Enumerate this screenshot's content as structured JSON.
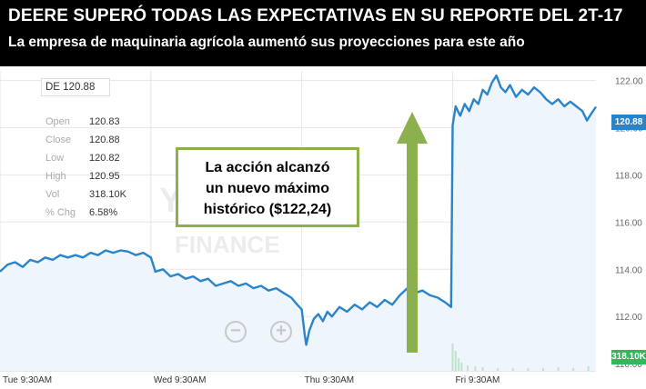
{
  "header": {
    "title": "DEERE SUPERÓ TODAS LAS EXPECTATIVAS EN SU REPORTE DEL 2T-17",
    "subtitle": "La empresa de maquinaria  agrícola aumentó sus proyecciones para  este año"
  },
  "quote": {
    "ticker": "DE 120.88",
    "rows": [
      {
        "label": "Open",
        "value": "120.83"
      },
      {
        "label": "Close",
        "value": "120.88"
      },
      {
        "label": "Low",
        "value": "120.82"
      },
      {
        "label": "High",
        "value": "120.95"
      },
      {
        "label": "Vol",
        "value": "318.10K"
      },
      {
        "label": "% Chg",
        "value": "6.58%"
      }
    ]
  },
  "annotation": {
    "lines": [
      "La acción alcanzó",
      "un nuevo máximo",
      "histórico  ($122,24)"
    ]
  },
  "watermark": {
    "line1": "Y!",
    "line2": "FINANCE"
  },
  "badges": {
    "price": "120.88",
    "volume": "318.10K"
  },
  "zoom": {
    "out": "−",
    "in": "+"
  },
  "colors": {
    "line": "#2a84c9",
    "fill": "#eef5fc",
    "arrow": "#8cb04e",
    "volume": "#bfe3c8"
  },
  "chart_data": {
    "type": "line",
    "title": "",
    "xlabel": "",
    "ylabel": "",
    "x_ticks": [
      {
        "label": "Tue 9:30AM",
        "x": 0
      },
      {
        "label": "Wed 9:30AM",
        "x": 1
      },
      {
        "label": "Thu 9:30AM",
        "x": 2
      },
      {
        "label": "Fri 9:30AM",
        "x": 3
      }
    ],
    "xlim": [
      0,
      3.95
    ],
    "y_ticks": [
      110.0,
      112.0,
      114.0,
      116.0,
      118.0,
      120.0,
      122.0
    ],
    "y_tick_labels": [
      "110.00",
      "112.00",
      "114.00",
      "116.00",
      "118.00",
      "120.00",
      "122.00"
    ],
    "ylim": [
      109.7,
      122.4
    ],
    "grid": true,
    "series": [
      {
        "values": [
          [
            0.0,
            113.9
          ],
          [
            0.05,
            114.2
          ],
          [
            0.1,
            114.3
          ],
          [
            0.15,
            114.1
          ],
          [
            0.2,
            114.4
          ],
          [
            0.25,
            114.3
          ],
          [
            0.3,
            114.5
          ],
          [
            0.35,
            114.4
          ],
          [
            0.4,
            114.6
          ],
          [
            0.45,
            114.5
          ],
          [
            0.5,
            114.6
          ],
          [
            0.55,
            114.5
          ],
          [
            0.6,
            114.7
          ],
          [
            0.65,
            114.6
          ],
          [
            0.7,
            114.8
          ],
          [
            0.75,
            114.7
          ],
          [
            0.8,
            114.8
          ],
          [
            0.85,
            114.75
          ],
          [
            0.9,
            114.6
          ],
          [
            0.95,
            114.7
          ],
          [
            1.0,
            114.5
          ],
          [
            1.03,
            113.9
          ],
          [
            1.08,
            114.0
          ],
          [
            1.13,
            113.7
          ],
          [
            1.18,
            113.8
          ],
          [
            1.23,
            113.6
          ],
          [
            1.28,
            113.7
          ],
          [
            1.33,
            113.5
          ],
          [
            1.38,
            113.6
          ],
          [
            1.43,
            113.3
          ],
          [
            1.48,
            113.4
          ],
          [
            1.53,
            113.5
          ],
          [
            1.58,
            113.3
          ],
          [
            1.63,
            113.4
          ],
          [
            1.68,
            113.2
          ],
          [
            1.73,
            113.3
          ],
          [
            1.78,
            113.1
          ],
          [
            1.83,
            113.2
          ],
          [
            1.88,
            113.0
          ],
          [
            1.93,
            112.8
          ],
          [
            1.97,
            112.5
          ],
          [
            2.0,
            112.3
          ],
          [
            2.02,
            111.2
          ],
          [
            2.03,
            110.8
          ],
          [
            2.05,
            111.4
          ],
          [
            2.08,
            111.9
          ],
          [
            2.11,
            112.1
          ],
          [
            2.14,
            111.8
          ],
          [
            2.17,
            112.2
          ],
          [
            2.2,
            112.0
          ],
          [
            2.25,
            112.4
          ],
          [
            2.3,
            112.2
          ],
          [
            2.35,
            112.5
          ],
          [
            2.4,
            112.3
          ],
          [
            2.45,
            112.6
          ],
          [
            2.5,
            112.4
          ],
          [
            2.55,
            112.7
          ],
          [
            2.6,
            112.5
          ],
          [
            2.65,
            112.9
          ],
          [
            2.7,
            113.2
          ],
          [
            2.75,
            113.0
          ],
          [
            2.8,
            113.1
          ],
          [
            2.85,
            112.9
          ],
          [
            2.9,
            112.8
          ],
          [
            2.95,
            112.6
          ],
          [
            2.99,
            112.4
          ],
          [
            3.0,
            120.1
          ],
          [
            3.02,
            120.9
          ],
          [
            3.05,
            120.5
          ],
          [
            3.08,
            121.0
          ],
          [
            3.11,
            120.7
          ],
          [
            3.14,
            121.2
          ],
          [
            3.17,
            121.0
          ],
          [
            3.2,
            121.6
          ],
          [
            3.23,
            121.4
          ],
          [
            3.26,
            121.9
          ],
          [
            3.29,
            122.2
          ],
          [
            3.32,
            121.7
          ],
          [
            3.35,
            121.5
          ],
          [
            3.38,
            121.8
          ],
          [
            3.42,
            121.3
          ],
          [
            3.46,
            121.6
          ],
          [
            3.5,
            121.4
          ],
          [
            3.54,
            121.7
          ],
          [
            3.58,
            121.5
          ],
          [
            3.62,
            121.2
          ],
          [
            3.66,
            121.0
          ],
          [
            3.7,
            121.2
          ],
          [
            3.74,
            120.9
          ],
          [
            3.78,
            121.1
          ],
          [
            3.82,
            120.9
          ],
          [
            3.86,
            120.7
          ],
          [
            3.89,
            120.3
          ],
          [
            3.92,
            120.6
          ],
          [
            3.95,
            120.88
          ]
        ]
      }
    ]
  }
}
